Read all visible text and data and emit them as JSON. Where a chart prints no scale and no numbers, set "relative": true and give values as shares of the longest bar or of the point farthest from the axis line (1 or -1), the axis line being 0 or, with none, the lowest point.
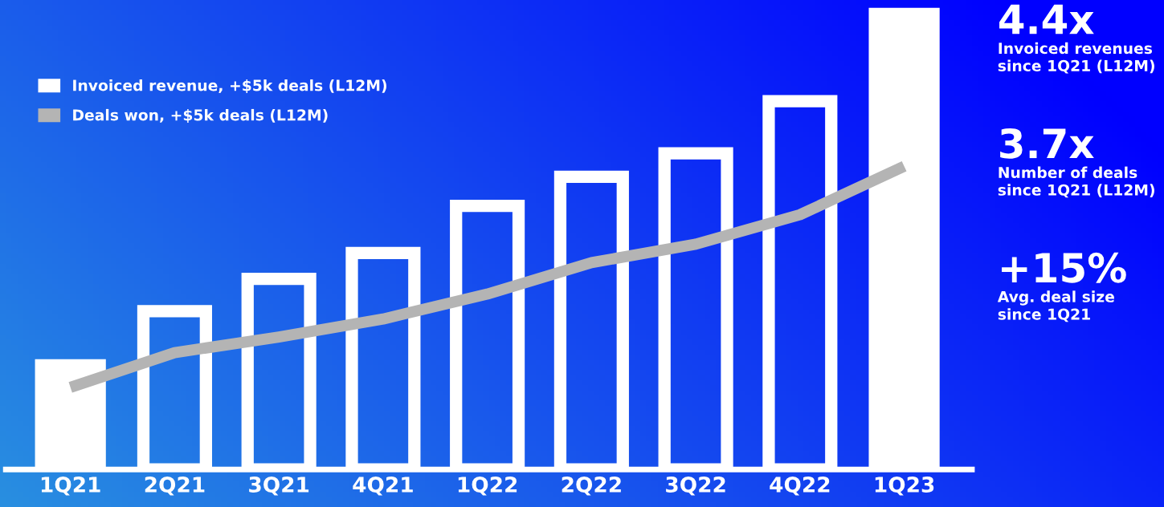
{
  "chart_data": {
    "type": "bar",
    "relative": true,
    "categories": [
      "1Q21",
      "2Q21",
      "3Q21",
      "4Q21",
      "1Q22",
      "2Q22",
      "3Q22",
      "4Q22",
      "1Q23"
    ],
    "series": [
      {
        "name": "Invoiced revenue, +$5k deals (L12M)",
        "color": "#ffffff",
        "colors": [
          "#ffffff",
          null,
          null,
          null,
          null,
          null,
          null,
          null,
          "#ffffff"
        ],
        "values": [
          0.239,
          0.343,
          0.413,
          0.469,
          0.571,
          0.634,
          0.685,
          0.798,
          1
        ]
      },
      {
        "name": "Deals won, +$5k deals (L12M)",
        "type": "line",
        "color": "#b4b4b4",
        "values": [
          0.178,
          0.253,
          0.287,
          0.326,
          0.38,
          0.448,
          0.488,
          0.552,
          0.657
        ]
      }
    ],
    "legend": "top left",
    "grid": false,
    "annotations": [
      "4.4x",
      "Invoiced revenues\nsince 1Q21 (L12M)",
      "3.7x",
      "Number of deals\nsince 1Q21 (L12M)",
      "+15%",
      "Avg. deal size\nsince 1Q21"
    ]
  }
}
